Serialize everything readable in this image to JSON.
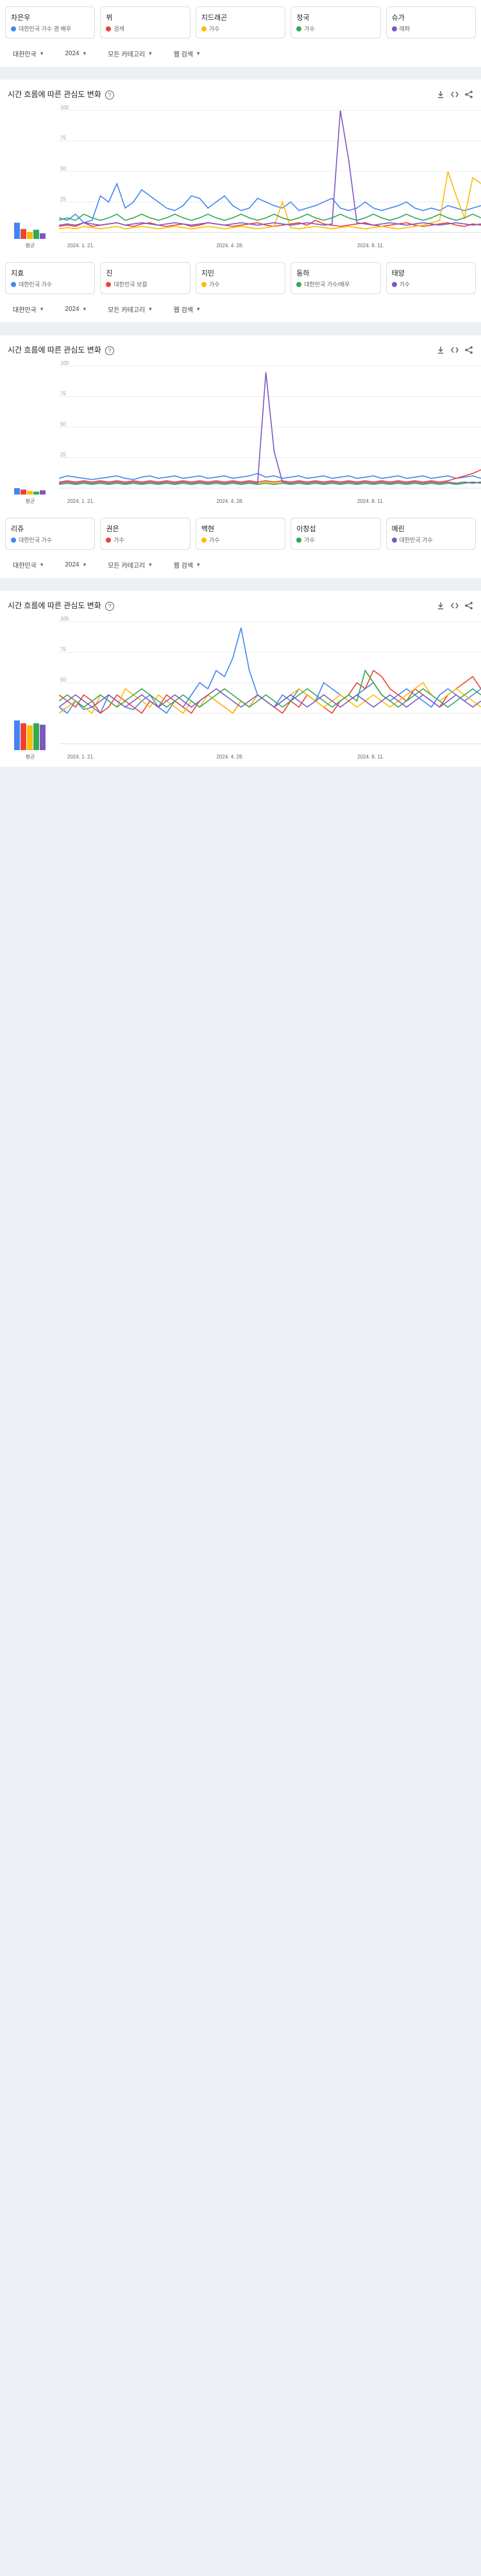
{
  "filters": {
    "region": "대한민국",
    "year": "2024",
    "category": "모든 카테고리",
    "search_type": "웹 검색"
  },
  "section_title": "시간 흐름에 따른 관심도 변화",
  "x_labels": [
    "2024. 1. 21.",
    "2024. 4. 28.",
    "2024. 8. 11."
  ],
  "y_ticks": [
    "100",
    "75",
    "50",
    "25"
  ],
  "average_label": "평균",
  "series_colors": [
    "#4285f4",
    "#ea4335",
    "#fbbc04",
    "#34a853",
    "#7e57c2"
  ],
  "groups": [
    {
      "terms": [
        {
          "name": "차은우",
          "sub": "대한민국 가수 겸 배우"
        },
        {
          "name": "뷔",
          "sub": "검색"
        },
        {
          "name": "지드래곤",
          "sub": "가수"
        },
        {
          "name": "정국",
          "sub": "가수"
        },
        {
          "name": "슈가",
          "sub": "래퍼"
        }
      ],
      "chart_data": {
        "type": "line",
        "x": [
          "1",
          "2",
          "3",
          "4",
          "5",
          "6",
          "7",
          "8",
          "9",
          "10",
          "11",
          "12",
          "13",
          "14",
          "15",
          "16",
          "17",
          "18",
          "19",
          "20",
          "21",
          "22",
          "23",
          "24",
          "25",
          "26",
          "27",
          "28",
          "29",
          "30",
          "31",
          "32",
          "33",
          "34",
          "35",
          "36",
          "37",
          "38",
          "39",
          "40",
          "41",
          "42",
          "43",
          "44",
          "45",
          "46",
          "47",
          "48",
          "49",
          "50",
          "51",
          "52"
        ],
        "series": [
          {
            "values": [
              12,
              10,
              15,
              8,
              10,
              30,
              25,
              40,
              20,
              25,
              35,
              30,
              25,
              20,
              18,
              22,
              30,
              28,
              20,
              25,
              30,
              22,
              18,
              20,
              28,
              25,
              22,
              20,
              25,
              18,
              20,
              22,
              25,
              28,
              20,
              18,
              20,
              25,
              20,
              18,
              20,
              22,
              25,
              20,
              18,
              20,
              18,
              22,
              20,
              18,
              20,
              22
            ]
          },
          {
            "values": [
              5,
              6,
              5,
              8,
              5,
              6,
              7,
              8,
              6,
              5,
              7,
              8,
              6,
              5,
              6,
              7,
              5,
              6,
              8,
              7,
              6,
              5,
              6,
              7,
              8,
              6,
              5,
              6,
              7,
              8,
              6,
              10,
              7,
              6,
              5,
              6,
              7,
              8,
              6,
              5,
              6,
              7,
              8,
              6,
              5,
              6,
              7,
              8,
              6,
              5,
              7,
              6
            ]
          },
          {
            "values": [
              3,
              4,
              3,
              5,
              4,
              3,
              4,
              5,
              3,
              4,
              5,
              4,
              3,
              4,
              5,
              4,
              3,
              4,
              5,
              4,
              3,
              4,
              5,
              4,
              3,
              4,
              5,
              25,
              4,
              3,
              4,
              5,
              4,
              3,
              4,
              5,
              4,
              3,
              4,
              5,
              4,
              3,
              4,
              5,
              6,
              8,
              10,
              50,
              30,
              12,
              45,
              40
            ]
          },
          {
            "values": [
              10,
              12,
              10,
              15,
              12,
              10,
              12,
              15,
              10,
              12,
              15,
              12,
              10,
              12,
              15,
              12,
              10,
              12,
              15,
              12,
              10,
              12,
              15,
              12,
              10,
              12,
              15,
              12,
              10,
              12,
              15,
              12,
              10,
              12,
              15,
              12,
              10,
              12,
              15,
              12,
              10,
              12,
              15,
              12,
              10,
              12,
              15,
              12,
              10,
              12,
              15,
              12
            ]
          },
          {
            "values": [
              6,
              7,
              6,
              8,
              7,
              6,
              7,
              8,
              6,
              7,
              8,
              7,
              6,
              7,
              8,
              7,
              6,
              7,
              8,
              7,
              6,
              7,
              8,
              7,
              6,
              7,
              8,
              7,
              6,
              7,
              8,
              7,
              6,
              7,
              100,
              60,
              8,
              7,
              6,
              7,
              8,
              7,
              6,
              7,
              8,
              7,
              6,
              7,
              8,
              7,
              6,
              7
            ]
          }
        ]
      },
      "averages": [
        23,
        14,
        10,
        13,
        8
      ]
    },
    {
      "terms": [
        {
          "name": "지효",
          "sub": "대한민국 가수"
        },
        {
          "name": "진",
          "sub": "대한민국 보컬"
        },
        {
          "name": "지민",
          "sub": "가수"
        },
        {
          "name": "동하",
          "sub": "대한민국 가수/배우"
        },
        {
          "name": "태양",
          "sub": "가수"
        }
      ],
      "chart_data": {
        "type": "line",
        "x": [
          "1",
          "2",
          "3",
          "4",
          "5",
          "6",
          "7",
          "8",
          "9",
          "10",
          "11",
          "12",
          "13",
          "14",
          "15",
          "16",
          "17",
          "18",
          "19",
          "20",
          "21",
          "22",
          "23",
          "24",
          "25",
          "26",
          "27",
          "28",
          "29",
          "30",
          "31",
          "32",
          "33",
          "34",
          "35",
          "36",
          "37",
          "38",
          "39",
          "40",
          "41",
          "42",
          "43",
          "44",
          "45",
          "46",
          "47",
          "48",
          "49",
          "50",
          "51",
          "52"
        ],
        "series": [
          {
            "values": [
              8,
              10,
              9,
              8,
              7,
              8,
              9,
              10,
              8,
              7,
              9,
              10,
              8,
              9,
              10,
              8,
              9,
              10,
              8,
              9,
              10,
              8,
              9,
              10,
              12,
              9,
              10,
              8,
              9,
              10,
              8,
              9,
              10,
              8,
              9,
              10,
              8,
              9,
              10,
              8,
              9,
              10,
              8,
              9,
              10,
              8,
              9,
              10,
              8,
              9,
              10,
              8
            ]
          },
          {
            "values": [
              5,
              6,
              5,
              6,
              5,
              6,
              5,
              6,
              5,
              6,
              5,
              6,
              5,
              6,
              5,
              6,
              5,
              6,
              5,
              6,
              5,
              6,
              5,
              6,
              5,
              6,
              5,
              6,
              5,
              6,
              5,
              6,
              5,
              6,
              5,
              6,
              5,
              6,
              5,
              6,
              5,
              6,
              5,
              6,
              5,
              6,
              5,
              6,
              8,
              10,
              12,
              15
            ]
          },
          {
            "values": [
              4,
              5,
              4,
              5,
              4,
              5,
              4,
              5,
              4,
              5,
              4,
              5,
              4,
              5,
              4,
              5,
              4,
              5,
              4,
              5,
              4,
              5,
              4,
              5,
              4,
              5,
              4,
              5,
              4,
              5,
              4,
              5,
              4,
              5,
              4,
              5,
              4,
              5,
              4,
              5,
              4,
              5,
              4,
              5,
              4,
              5,
              4,
              5,
              4,
              5,
              4,
              5
            ]
          },
          {
            "values": [
              3,
              4,
              3,
              4,
              3,
              4,
              3,
              4,
              3,
              4,
              3,
              4,
              3,
              4,
              3,
              4,
              3,
              4,
              3,
              4,
              3,
              4,
              3,
              4,
              3,
              4,
              3,
              4,
              3,
              4,
              3,
              4,
              3,
              4,
              3,
              4,
              3,
              4,
              3,
              4,
              3,
              4,
              3,
              4,
              3,
              4,
              3,
              4,
              3,
              4,
              5,
              4
            ]
          },
          {
            "values": [
              4,
              5,
              4,
              5,
              4,
              5,
              4,
              5,
              4,
              5,
              4,
              5,
              4,
              5,
              4,
              5,
              4,
              5,
              4,
              5,
              4,
              5,
              4,
              5,
              4,
              95,
              30,
              5,
              4,
              5,
              4,
              5,
              4,
              5,
              4,
              5,
              4,
              5,
              4,
              5,
              4,
              5,
              4,
              5,
              4,
              5,
              4,
              5,
              4,
              5,
              4,
              5
            ]
          }
        ]
      },
      "averages": [
        9,
        7,
        5,
        4,
        6
      ]
    },
    {
      "terms": [
        {
          "name": "리쥬",
          "sub": "대한민국 가수"
        },
        {
          "name": "권은",
          "sub": "가수"
        },
        {
          "name": "백현",
          "sub": "가수"
        },
        {
          "name": "이창섭",
          "sub": "가수"
        },
        {
          "name": "예린",
          "sub": "대한민국 가수"
        }
      ],
      "chart_data": {
        "type": "line",
        "x": [
          "1",
          "2",
          "3",
          "4",
          "5",
          "6",
          "7",
          "8",
          "9",
          "10",
          "11",
          "12",
          "13",
          "14",
          "15",
          "16",
          "17",
          "18",
          "19",
          "20",
          "21",
          "22",
          "23",
          "24",
          "25",
          "26",
          "27",
          "28",
          "29",
          "30",
          "31",
          "32",
          "33",
          "34",
          "35",
          "36",
          "37",
          "38",
          "39",
          "40",
          "41",
          "42",
          "43",
          "44",
          "45",
          "46",
          "47",
          "48",
          "49",
          "50",
          "51",
          "52"
        ],
        "series": [
          {
            "values": [
              30,
              25,
              35,
              28,
              30,
              25,
              40,
              35,
              30,
              28,
              35,
              40,
              30,
              25,
              35,
              30,
              40,
              50,
              45,
              60,
              55,
              70,
              95,
              60,
              40,
              35,
              30,
              40,
              35,
              45,
              40,
              35,
              50,
              45,
              40,
              35,
              40,
              45,
              50,
              40,
              35,
              40,
              45,
              40,
              35,
              30,
              40,
              45,
              40,
              35,
              40,
              45
            ]
          },
          {
            "values": [
              40,
              35,
              30,
              40,
              35,
              25,
              30,
              40,
              35,
              30,
              25,
              35,
              30,
              40,
              35,
              30,
              25,
              35,
              40,
              35,
              30,
              25,
              35,
              30,
              40,
              35,
              30,
              25,
              35,
              30,
              40,
              35,
              30,
              25,
              35,
              40,
              50,
              45,
              60,
              55,
              45,
              40,
              35,
              45,
              40,
              35,
              30,
              40,
              45,
              50,
              55,
              45
            ]
          },
          {
            "values": [
              25,
              30,
              35,
              30,
              25,
              40,
              35,
              30,
              45,
              40,
              35,
              30,
              40,
              35,
              30,
              25,
              35,
              30,
              40,
              35,
              30,
              25,
              35,
              30,
              40,
              35,
              30,
              35,
              40,
              45,
              40,
              35,
              30,
              35,
              40,
              35,
              30,
              35,
              40,
              35,
              30,
              35,
              40,
              45,
              50,
              40,
              35,
              40,
              45,
              40,
              35,
              30
            ]
          },
          {
            "values": [
              35,
              40,
              35,
              30,
              35,
              40,
              35,
              30,
              35,
              40,
              45,
              40,
              35,
              30,
              35,
              40,
              35,
              30,
              35,
              40,
              45,
              40,
              35,
              30,
              35,
              40,
              35,
              30,
              35,
              40,
              45,
              40,
              35,
              30,
              35,
              40,
              35,
              60,
              50,
              40,
              35,
              30,
              35,
              40,
              45,
              40,
              35,
              30,
              35,
              40,
              45,
              40
            ]
          },
          {
            "values": [
              30,
              35,
              40,
              35,
              30,
              35,
              40,
              35,
              30,
              35,
              40,
              35,
              30,
              35,
              40,
              35,
              30,
              35,
              40,
              45,
              40,
              35,
              30,
              35,
              40,
              35,
              30,
              35,
              40,
              35,
              30,
              35,
              40,
              35,
              30,
              35,
              40,
              35,
              30,
              35,
              40,
              35,
              30,
              35,
              40,
              35,
              30,
              35,
              40,
              35,
              30,
              35
            ]
          }
        ]
      },
      "averages": [
        42,
        38,
        35,
        38,
        36
      ]
    }
  ]
}
